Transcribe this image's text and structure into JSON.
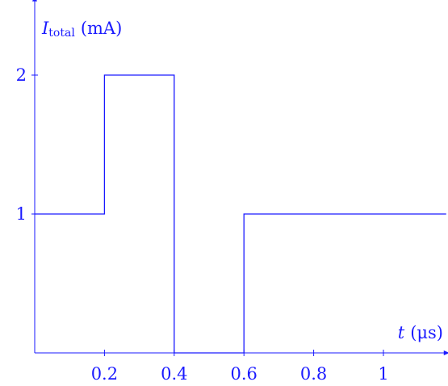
{
  "chart_data": {
    "type": "line",
    "step": true,
    "color": "#1a1aff",
    "title": "",
    "xlabel": {
      "symbol": "t",
      "unit": "(μs)"
    },
    "ylabel": {
      "symbol": "I",
      "subscript": "total",
      "unit": "(mA)"
    },
    "x_ticks": [
      0.2,
      0.4,
      0.6,
      0.8,
      1
    ],
    "x_tick_labels": [
      "0.2",
      "0.4",
      "0.6",
      "0.8",
      "1"
    ],
    "y_ticks": [
      1,
      2
    ],
    "y_tick_labels": [
      "1",
      "2"
    ],
    "xlim": [
      0,
      1.18
    ],
    "ylim": [
      0,
      2.45
    ],
    "grid": false,
    "series": [
      {
        "x": [
          0,
          0.2,
          0.2,
          0.4,
          0.4,
          0.6,
          0.6,
          1.18
        ],
        "y": [
          1,
          1,
          2,
          2,
          0,
          0,
          1,
          1
        ]
      }
    ]
  }
}
